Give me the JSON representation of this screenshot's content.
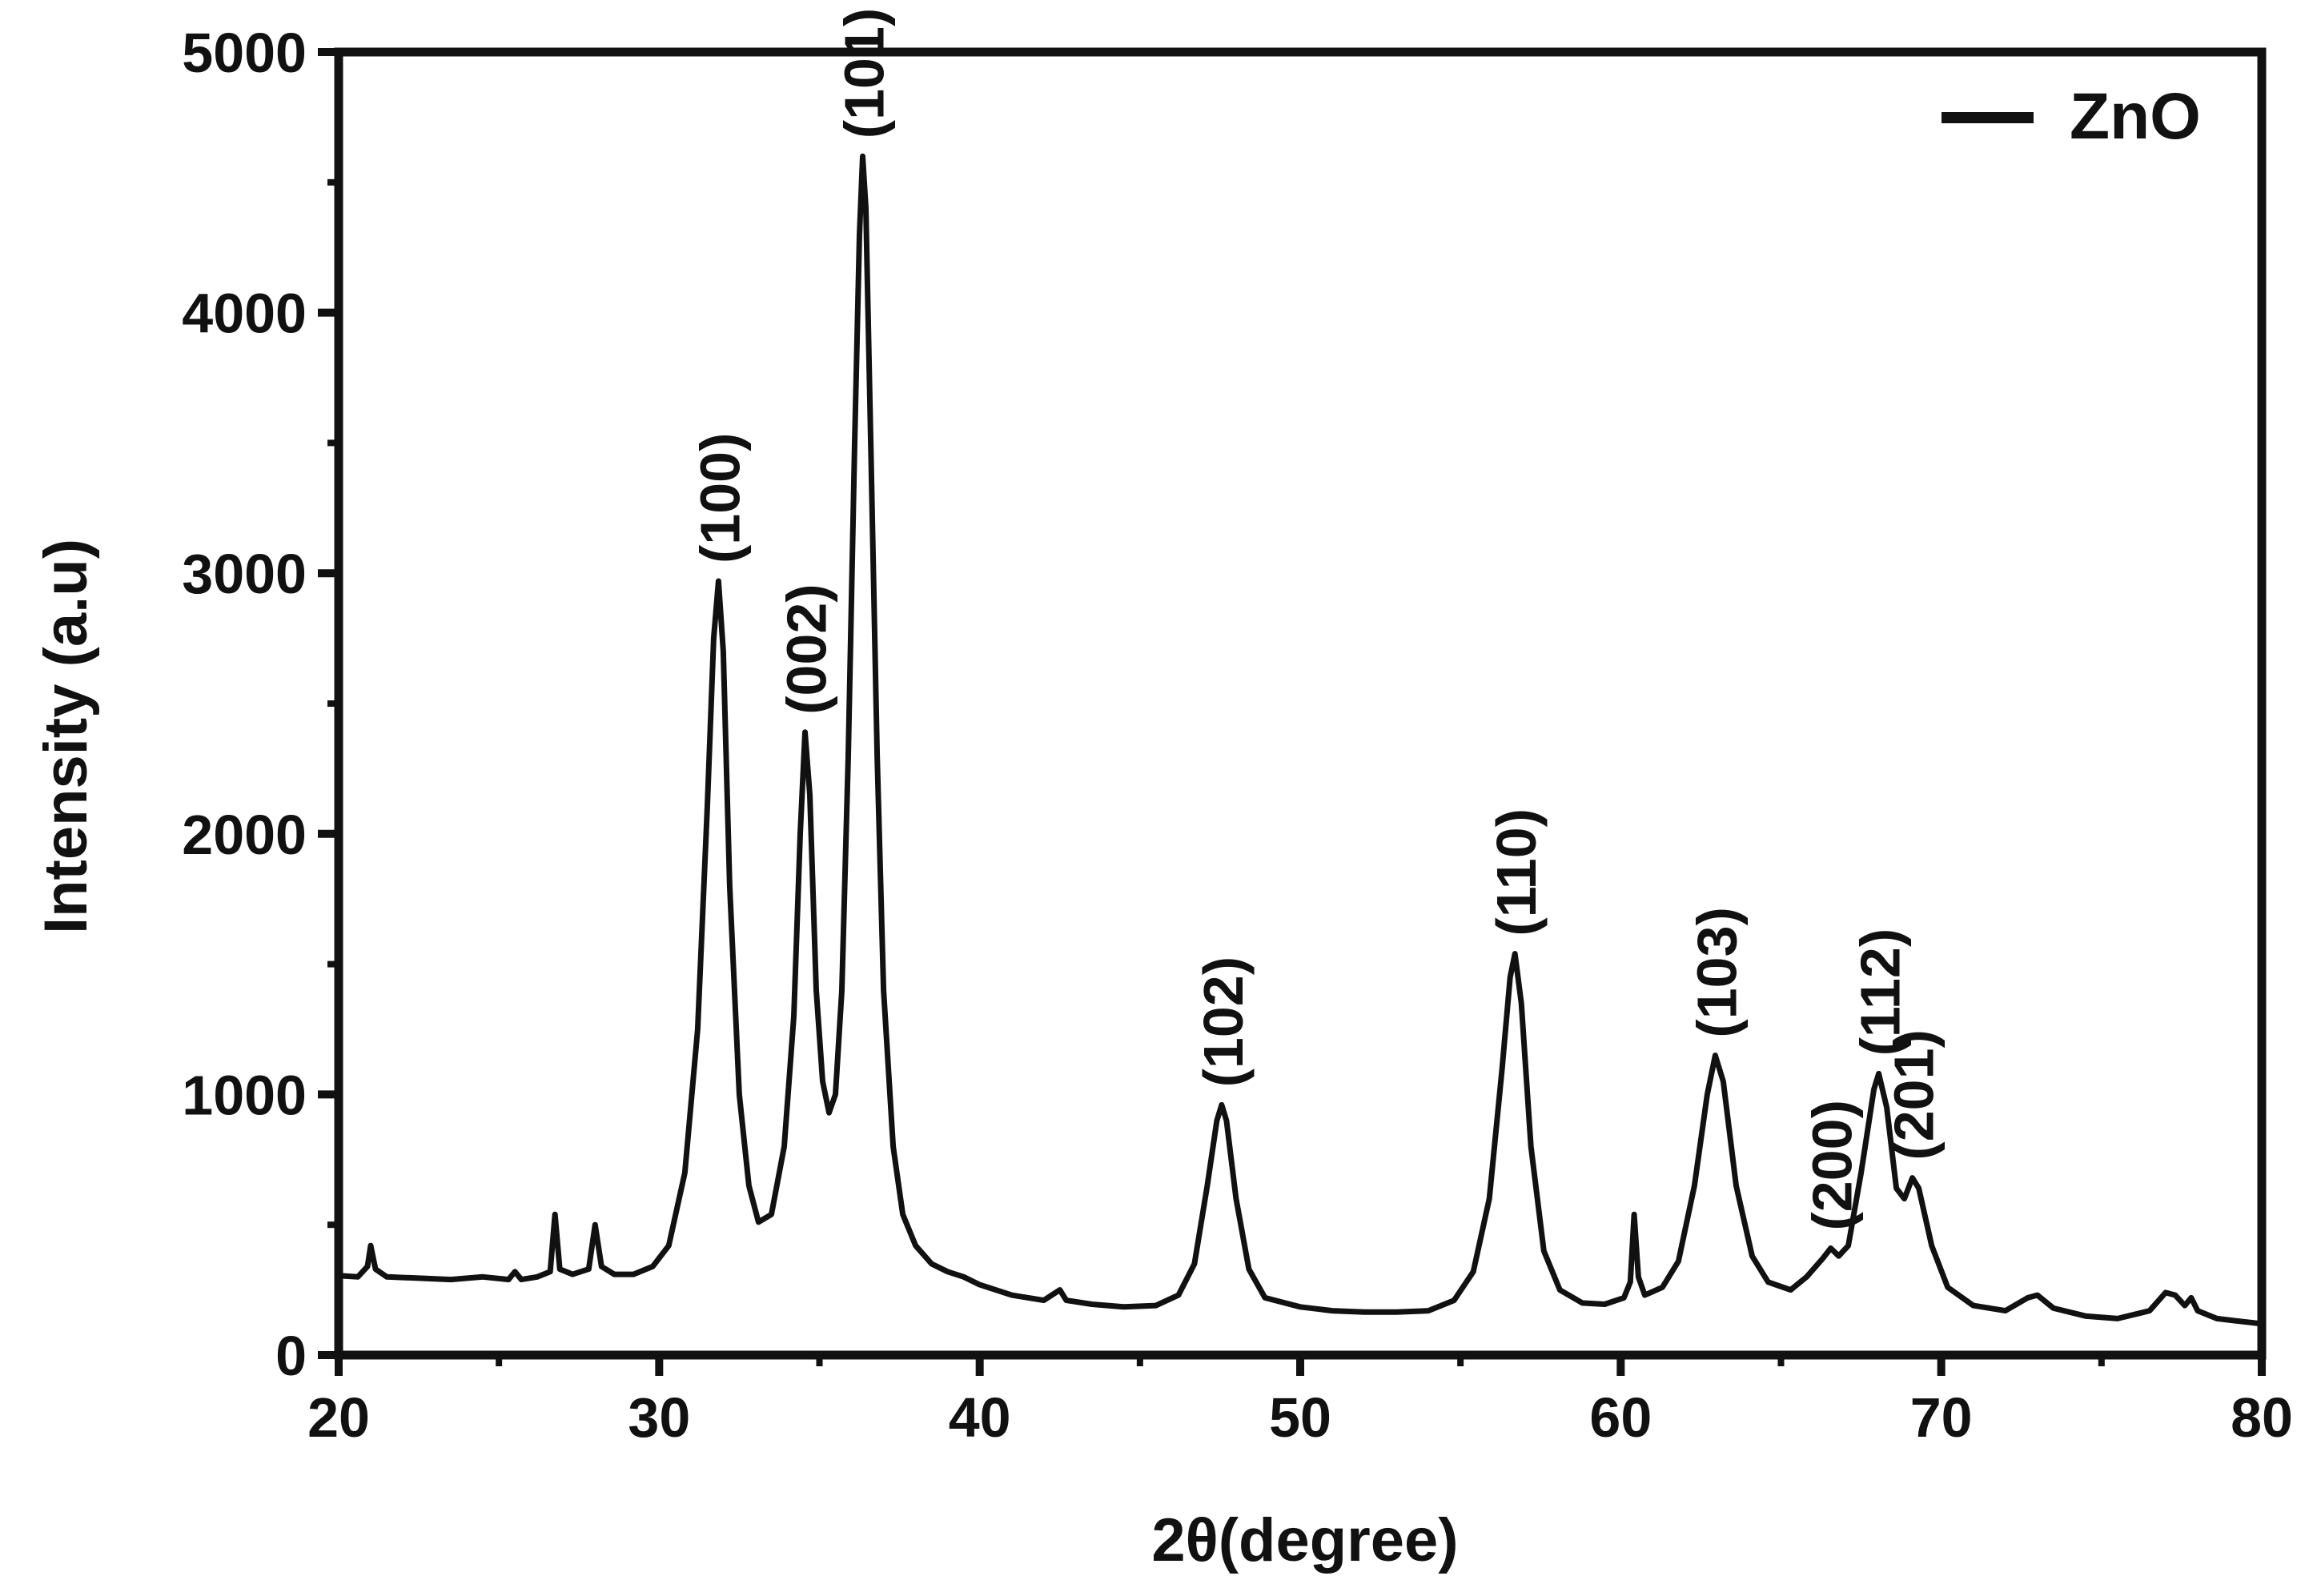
{
  "chart_data": {
    "type": "line",
    "title": "",
    "xlabel": "2θ(degree)",
    "ylabel": "Intensity (a.u)",
    "xlim": [
      20,
      80
    ],
    "ylim": [
      0,
      5000
    ],
    "x_ticks": [
      20,
      30,
      40,
      50,
      60,
      70,
      80
    ],
    "y_ticks": [
      0,
      1000,
      2000,
      3000,
      4000,
      5000
    ],
    "grid": false,
    "legend": {
      "position": "top-right",
      "entries": [
        "ZnO"
      ]
    },
    "series": [
      {
        "name": "ZnO",
        "color": "#111111",
        "points": [
          [
            20.0,
            305
          ],
          [
            20.6,
            300
          ],
          [
            20.9,
            340
          ],
          [
            21.0,
            420
          ],
          [
            21.15,
            330
          ],
          [
            21.5,
            300
          ],
          [
            22.5,
            295
          ],
          [
            23.5,
            290
          ],
          [
            24.5,
            300
          ],
          [
            25.3,
            290
          ],
          [
            25.5,
            320
          ],
          [
            25.7,
            290
          ],
          [
            26.2,
            300
          ],
          [
            26.6,
            320
          ],
          [
            26.75,
            540
          ],
          [
            26.9,
            330
          ],
          [
            27.3,
            310
          ],
          [
            27.8,
            330
          ],
          [
            28.0,
            500
          ],
          [
            28.2,
            340
          ],
          [
            28.6,
            310
          ],
          [
            29.2,
            310
          ],
          [
            29.8,
            340
          ],
          [
            30.3,
            420
          ],
          [
            30.8,
            700
          ],
          [
            31.2,
            1250
          ],
          [
            31.5,
            2100
          ],
          [
            31.7,
            2750
          ],
          [
            31.85,
            2970
          ],
          [
            32.0,
            2700
          ],
          [
            32.2,
            1800
          ],
          [
            32.5,
            1000
          ],
          [
            32.8,
            650
          ],
          [
            33.1,
            510
          ],
          [
            33.5,
            540
          ],
          [
            33.9,
            800
          ],
          [
            34.2,
            1300
          ],
          [
            34.4,
            2000
          ],
          [
            34.55,
            2390
          ],
          [
            34.7,
            2150
          ],
          [
            34.9,
            1400
          ],
          [
            35.1,
            1050
          ],
          [
            35.3,
            930
          ],
          [
            35.5,
            1000
          ],
          [
            35.7,
            1400
          ],
          [
            35.9,
            2300
          ],
          [
            36.1,
            3500
          ],
          [
            36.25,
            4300
          ],
          [
            36.35,
            4600
          ],
          [
            36.45,
            4400
          ],
          [
            36.6,
            3500
          ],
          [
            36.8,
            2300
          ],
          [
            37.0,
            1400
          ],
          [
            37.3,
            800
          ],
          [
            37.6,
            540
          ],
          [
            38.0,
            420
          ],
          [
            38.5,
            350
          ],
          [
            39.0,
            320
          ],
          [
            39.5,
            300
          ],
          [
            40.0,
            270
          ],
          [
            41.0,
            230
          ],
          [
            42.0,
            210
          ],
          [
            42.5,
            250
          ],
          [
            42.7,
            210
          ],
          [
            43.5,
            195
          ],
          [
            44.5,
            185
          ],
          [
            45.5,
            190
          ],
          [
            46.2,
            230
          ],
          [
            46.7,
            350
          ],
          [
            47.1,
            650
          ],
          [
            47.4,
            900
          ],
          [
            47.55,
            960
          ],
          [
            47.7,
            900
          ],
          [
            48.0,
            600
          ],
          [
            48.4,
            330
          ],
          [
            48.9,
            220
          ],
          [
            50.0,
            185
          ],
          [
            51.0,
            170
          ],
          [
            52.0,
            165
          ],
          [
            53.0,
            165
          ],
          [
            54.0,
            170
          ],
          [
            54.8,
            210
          ],
          [
            55.4,
            320
          ],
          [
            55.9,
            600
          ],
          [
            56.3,
            1100
          ],
          [
            56.55,
            1450
          ],
          [
            56.7,
            1540
          ],
          [
            56.9,
            1350
          ],
          [
            57.2,
            800
          ],
          [
            57.6,
            400
          ],
          [
            58.1,
            250
          ],
          [
            58.8,
            200
          ],
          [
            59.5,
            195
          ],
          [
            60.1,
            220
          ],
          [
            60.3,
            280
          ],
          [
            60.42,
            540
          ],
          [
            60.55,
            300
          ],
          [
            60.75,
            230
          ],
          [
            61.3,
            260
          ],
          [
            61.8,
            360
          ],
          [
            62.3,
            650
          ],
          [
            62.7,
            1000
          ],
          [
            62.95,
            1150
          ],
          [
            63.2,
            1050
          ],
          [
            63.6,
            650
          ],
          [
            64.1,
            380
          ],
          [
            64.6,
            280
          ],
          [
            65.3,
            250
          ],
          [
            65.8,
            300
          ],
          [
            66.3,
            370
          ],
          [
            66.55,
            410
          ],
          [
            66.8,
            380
          ],
          [
            67.1,
            420
          ],
          [
            67.5,
            700
          ],
          [
            67.9,
            1020
          ],
          [
            68.05,
            1080
          ],
          [
            68.3,
            950
          ],
          [
            68.6,
            640
          ],
          [
            68.85,
            600
          ],
          [
            69.1,
            680
          ],
          [
            69.3,
            640
          ],
          [
            69.7,
            420
          ],
          [
            70.2,
            260
          ],
          [
            71.0,
            190
          ],
          [
            72.0,
            170
          ],
          [
            72.7,
            220
          ],
          [
            73.0,
            230
          ],
          [
            73.5,
            180
          ],
          [
            74.5,
            150
          ],
          [
            75.5,
            140
          ],
          [
            76.5,
            170
          ],
          [
            77.0,
            240
          ],
          [
            77.3,
            230
          ],
          [
            77.6,
            190
          ],
          [
            77.8,
            220
          ],
          [
            78.0,
            170
          ],
          [
            78.6,
            140
          ],
          [
            79.3,
            130
          ],
          [
            80.0,
            120
          ]
        ]
      }
    ],
    "annotations": [
      {
        "text": "(100)",
        "x": 31.85,
        "y": 2970
      },
      {
        "text": "(002)",
        "x": 34.55,
        "y": 2390
      },
      {
        "text": "(101)",
        "x": 36.35,
        "y": 4600
      },
      {
        "text": "(102)",
        "x": 47.55,
        "y": 960
      },
      {
        "text": "(110)",
        "x": 56.7,
        "y": 1540
      },
      {
        "text": "(103)",
        "x": 62.95,
        "y": 1150
      },
      {
        "text": "(200)",
        "x": 66.55,
        "y": 410
      },
      {
        "text": "(112)",
        "x": 68.05,
        "y": 1080
      },
      {
        "text": "(201)",
        "x": 69.1,
        "y": 680
      }
    ]
  }
}
